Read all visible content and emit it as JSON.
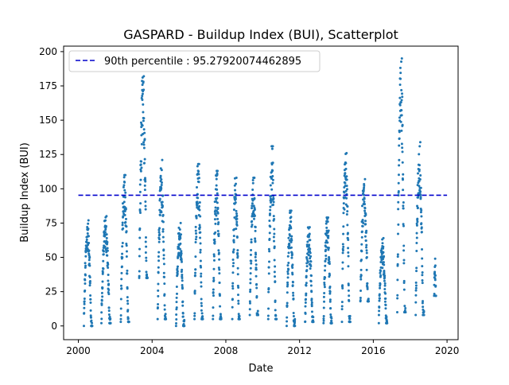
{
  "chart_data": {
    "type": "scatter",
    "title": "GASPARD - Buildup Index (BUI), Scatterplot",
    "xlabel": "Date",
    "ylabel": "Buildup Index (BUI)",
    "x_axis": {
      "kind": "date-year",
      "range": [
        1999.2,
        2020.6
      ],
      "tick_labels": [
        "2000",
        "2004",
        "2008",
        "2012",
        "2016",
        "2020"
      ],
      "tick_values": [
        2000,
        2004,
        2008,
        2012,
        2016,
        2020
      ]
    },
    "y_axis": {
      "range": [
        -10,
        204
      ],
      "tick_labels": [
        "0",
        "25",
        "50",
        "75",
        "100",
        "125",
        "150",
        "175",
        "200"
      ],
      "tick_values": [
        0,
        25,
        50,
        75,
        100,
        125,
        150,
        175,
        200
      ]
    },
    "grid": false,
    "legend": {
      "placement": "upper-left",
      "entries": [
        {
          "label": "90th percentile : 95.27920074462895",
          "style": "dashed",
          "color": "#0000cc"
        }
      ]
    },
    "reference_line": {
      "name": "90th percentile : 95.27920074462895",
      "y": 95.27920074462895,
      "x_range": [
        2000.0,
        2020.0
      ],
      "color": "#0000cc",
      "dash": true
    },
    "series": [
      {
        "marker_color": "#1f77b4",
        "seasons": [
          {
            "x_start": 2000.3,
            "x_end": 2000.75,
            "y_min": 0,
            "y_max": 77
          },
          {
            "x_start": 2001.25,
            "x_end": 2001.75,
            "y_min": 2,
            "y_max": 80
          },
          {
            "x_start": 2002.3,
            "x_end": 2002.75,
            "y_min": 3,
            "y_max": 110
          },
          {
            "x_start": 2003.3,
            "x_end": 2003.75,
            "y_min": 35,
            "y_max": 182
          },
          {
            "x_start": 2004.3,
            "x_end": 2004.75,
            "y_min": 5,
            "y_max": 121
          },
          {
            "x_start": 2005.3,
            "x_end": 2005.75,
            "y_min": 0,
            "y_max": 75
          },
          {
            "x_start": 2006.3,
            "x_end": 2006.75,
            "y_min": 5,
            "y_max": 118
          },
          {
            "x_start": 2007.3,
            "x_end": 2007.75,
            "y_min": 5,
            "y_max": 113
          },
          {
            "x_start": 2008.35,
            "x_end": 2008.75,
            "y_min": 5,
            "y_max": 108
          },
          {
            "x_start": 2009.3,
            "x_end": 2009.75,
            "y_min": 8,
            "y_max": 108
          },
          {
            "x_start": 2010.3,
            "x_end": 2010.75,
            "y_min": 5,
            "y_max": 131
          },
          {
            "x_start": 2011.3,
            "x_end": 2011.75,
            "y_min": 0,
            "y_max": 84
          },
          {
            "x_start": 2012.3,
            "x_end": 2012.75,
            "y_min": 3,
            "y_max": 72
          },
          {
            "x_start": 2013.3,
            "x_end": 2013.75,
            "y_min": 2,
            "y_max": 79
          },
          {
            "x_start": 2014.3,
            "x_end": 2014.75,
            "y_min": 3,
            "y_max": 126
          },
          {
            "x_start": 2015.3,
            "x_end": 2015.75,
            "y_min": 18,
            "y_max": 107
          },
          {
            "x_start": 2016.3,
            "x_end": 2016.75,
            "y_min": 2,
            "y_max": 64
          },
          {
            "x_start": 2017.3,
            "x_end": 2017.75,
            "y_min": 10,
            "y_max": 195
          },
          {
            "x_start": 2018.3,
            "x_end": 2018.75,
            "y_min": 8,
            "y_max": 134
          },
          {
            "x_start": 2019.3,
            "x_end": 2019.4,
            "y_min": 22,
            "y_max": 49
          }
        ]
      }
    ]
  }
}
